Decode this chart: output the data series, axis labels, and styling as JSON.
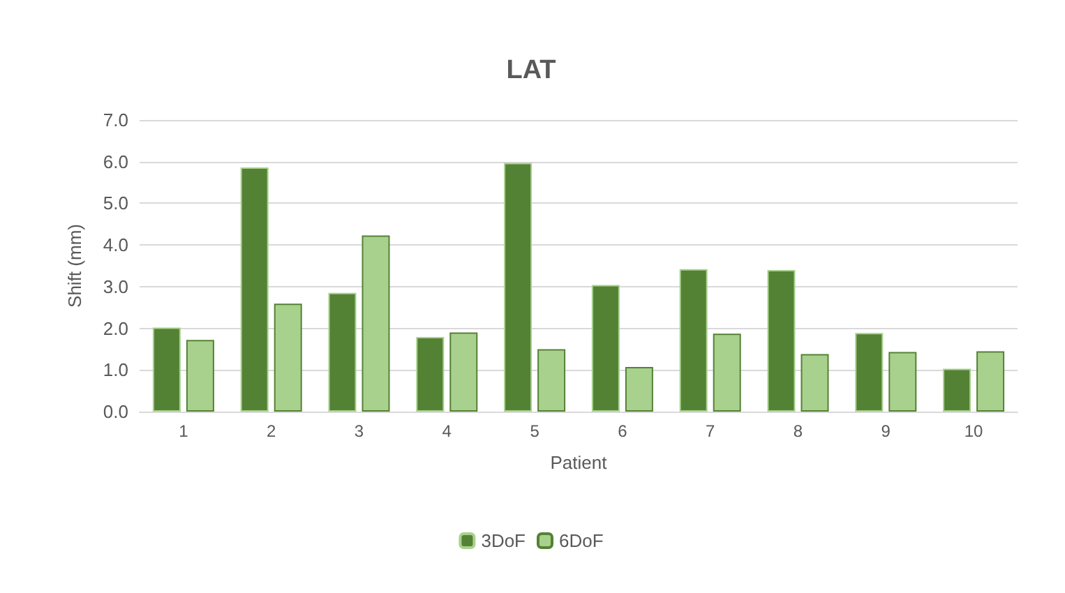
{
  "chart_data": {
    "type": "bar",
    "title": "LAT",
    "xlabel": "Patient",
    "ylabel": "Shift (mm)",
    "categories": [
      "1",
      "2",
      "3",
      "4",
      "5",
      "6",
      "7",
      "8",
      "9",
      "10"
    ],
    "series": [
      {
        "name": "3DoF",
        "color": "#548235",
        "values": [
          2.02,
          5.86,
          2.85,
          1.79,
          5.97,
          3.04,
          3.42,
          3.4,
          1.89,
          1.03
        ]
      },
      {
        "name": "6DoF",
        "color": "#a9d18e",
        "values": [
          1.72,
          2.59,
          4.23,
          1.9,
          1.5,
          1.07,
          1.87,
          1.38,
          1.43,
          1.45
        ]
      }
    ],
    "ylim": [
      0,
      7
    ],
    "yticks": [
      {
        "value": 0,
        "label": "0.0"
      },
      {
        "value": 1,
        "label": "1.0"
      },
      {
        "value": 2,
        "label": "2.0"
      },
      {
        "value": 3,
        "label": "3.0"
      },
      {
        "value": 4,
        "label": "4.0"
      },
      {
        "value": 5,
        "label": "5.0"
      },
      {
        "value": 6,
        "label": "6.0"
      },
      {
        "value": 7,
        "label": "7.0"
      }
    ],
    "grid": "y",
    "legend": "bottom"
  }
}
